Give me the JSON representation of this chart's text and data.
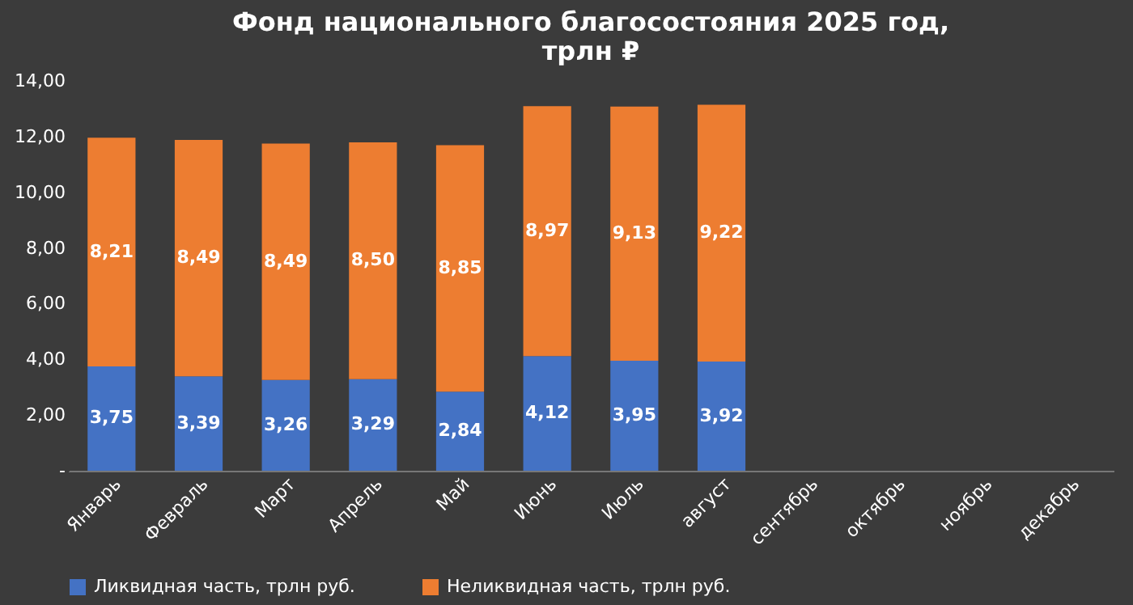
{
  "chart_data": {
    "type": "bar",
    "stacked": true,
    "title": "Фонд национального благосостояния 2025 год, трлн ₽",
    "categories": [
      "Январь",
      "Февраль",
      "Март",
      "Апрель",
      "Май",
      "Июнь",
      "Июль",
      "август",
      "сентябрь",
      "октябрь",
      "ноябрь",
      "декабрь"
    ],
    "series": [
      {
        "name": "Ликвидная часть, трлн руб.",
        "color": "#4472c4",
        "values": [
          3.75,
          3.39,
          3.26,
          3.29,
          2.84,
          4.12,
          3.95,
          3.92,
          null,
          null,
          null,
          null
        ],
        "value_labels": [
          "3,75",
          "3,39",
          "3,26",
          "3,29",
          "2,84",
          "4,12",
          "3,95",
          "3,92",
          null,
          null,
          null,
          null
        ]
      },
      {
        "name": "Неликвидная часть, трлн руб.",
        "color": "#ed7d31",
        "values": [
          8.21,
          8.49,
          8.49,
          8.5,
          8.85,
          8.97,
          9.13,
          9.22,
          null,
          null,
          null,
          null
        ],
        "value_labels": [
          "8,21",
          "8,49",
          "8,49",
          "8,50",
          "8,85",
          "8,97",
          "9,13",
          "9,22",
          null,
          null,
          null,
          null
        ]
      }
    ],
    "ylim": [
      0,
      14
    ],
    "yticks": [
      {
        "value": 0,
        "label": "-"
      },
      {
        "value": 2,
        "label": "2,00"
      },
      {
        "value": 4,
        "label": "4,00"
      },
      {
        "value": 6,
        "label": "6,00"
      },
      {
        "value": 8,
        "label": "8,00"
      },
      {
        "value": 10,
        "label": "10,00"
      },
      {
        "value": 12,
        "label": "12,00"
      },
      {
        "value": 14,
        "label": "14,00"
      }
    ],
    "data_labels": true,
    "legend": "bottom",
    "grid": false
  }
}
